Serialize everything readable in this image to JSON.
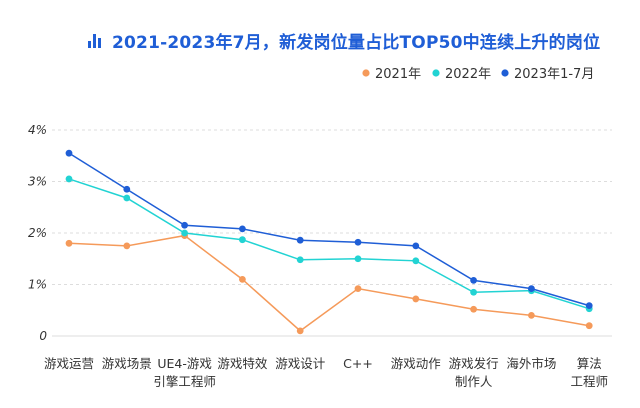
{
  "title": "2021-2023年7月，新发岗位量占比TOP50中连续上升的岗位",
  "icon": "bar-chart-icon",
  "chart_data": {
    "type": "line",
    "categories": [
      [
        "游戏运营"
      ],
      [
        "游戏场景"
      ],
      [
        "UE4-游戏",
        "引擎工程师"
      ],
      [
        "游戏特效"
      ],
      [
        "游戏设计"
      ],
      [
        "C++"
      ],
      [
        "游戏动作"
      ],
      [
        "游戏发行",
        "制作人"
      ],
      [
        "海外市场"
      ],
      [
        "算法",
        "工程师"
      ]
    ],
    "series": [
      {
        "name": "2021年",
        "color": "#f59a5a",
        "values": [
          1.8,
          1.75,
          1.95,
          1.1,
          0.1,
          0.92,
          0.72,
          0.52,
          0.4,
          0.2
        ]
      },
      {
        "name": "2022年",
        "color": "#22d3d3",
        "values": [
          3.05,
          2.68,
          2.0,
          1.87,
          1.48,
          1.5,
          1.46,
          0.85,
          0.88,
          0.53
        ]
      },
      {
        "name": "2023年1-7月",
        "color": "#1f5ed6",
        "values": [
          3.55,
          2.85,
          2.15,
          2.08,
          1.86,
          1.82,
          1.75,
          1.08,
          0.92,
          0.59
        ]
      }
    ],
    "yticks": [
      "0",
      "1%",
      "2%",
      "3%",
      "4%"
    ],
    "ylim": [
      0,
      4
    ],
    "grid": true,
    "legend_position": "top-right"
  }
}
